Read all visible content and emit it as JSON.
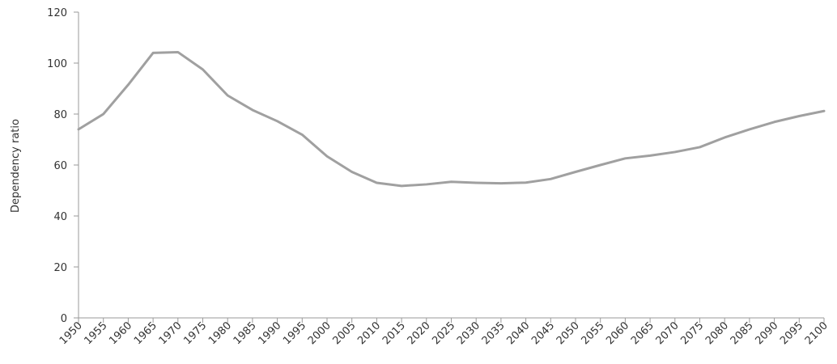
{
  "chart_data": {
    "type": "line",
    "title": "",
    "xlabel": "",
    "ylabel": "Dependency ratio",
    "x": [
      1950,
      1955,
      1960,
      1965,
      1970,
      1975,
      1980,
      1985,
      1990,
      1995,
      2000,
      2005,
      2010,
      2015,
      2020,
      2025,
      2030,
      2035,
      2040,
      2045,
      2050,
      2055,
      2060,
      2065,
      2070,
      2075,
      2080,
      2085,
      2090,
      2095,
      2100
    ],
    "series": [
      {
        "values": [
          74,
          80,
          91.5,
          104,
          104.3,
          97.5,
          87.3,
          81.6,
          77.2,
          71.9,
          63.4,
          57.3,
          53,
          51.8,
          52.4,
          53.4,
          53,
          52.8,
          53.1,
          54.5,
          57.3,
          60,
          62.6,
          63.7,
          65.1,
          67,
          70.8,
          74,
          76.9,
          79.2,
          81.2
        ]
      }
    ],
    "ylim": [
      0,
      120
    ],
    "yticks": [
      0,
      20,
      40,
      60,
      80,
      100,
      120
    ],
    "xlim": [
      1950,
      2100
    ],
    "grid": false,
    "legend": "none",
    "colors": {
      "line": "#a0a0a0",
      "axis": "#9a9a9a",
      "text": "#333333"
    }
  }
}
